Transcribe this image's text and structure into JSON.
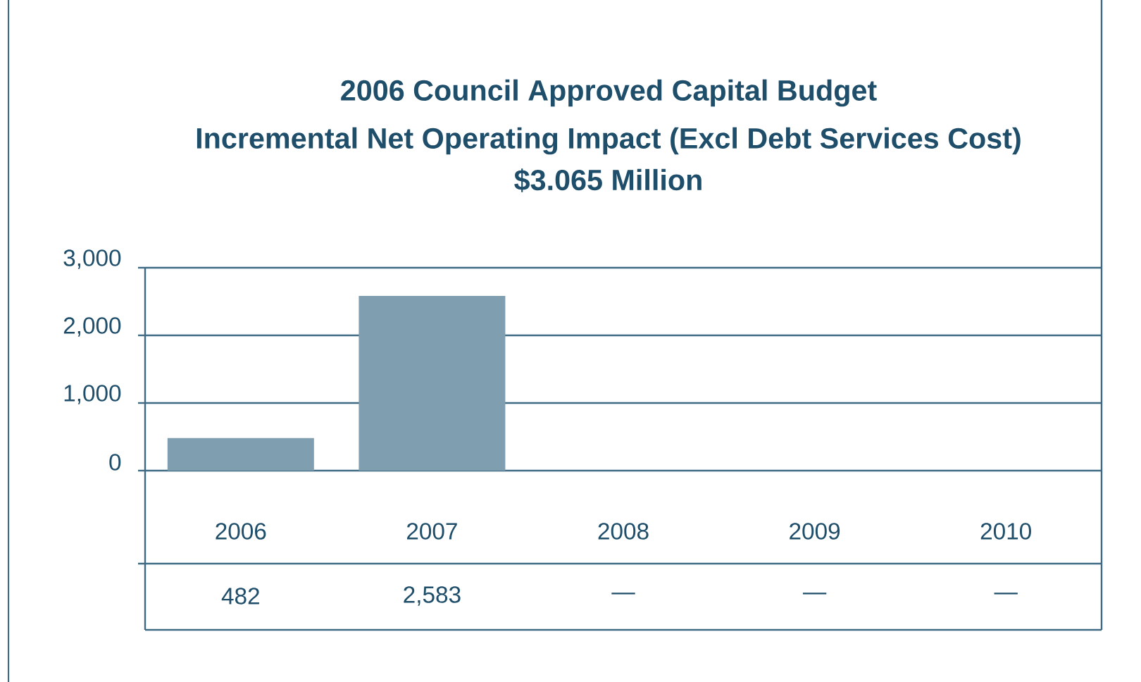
{
  "chart_data": {
    "type": "bar",
    "title": "2006 Council Approved Capital Budget",
    "subtitle": "Incremental Net Operating Impact (Excl Debt Services Cost)",
    "annotations": [
      "$3.065 Million"
    ],
    "categories": [
      "2006",
      "2007",
      "2008",
      "2009",
      "2010"
    ],
    "values": [
      482,
      2583,
      null,
      null,
      null
    ],
    "value_labels": [
      "482",
      "2,583",
      "—",
      "—",
      "—"
    ],
    "color": "#7f9fb0",
    "ylim": [
      0,
      3000
    ],
    "yticks": [
      {
        "value": 0,
        "label": "0"
      },
      {
        "value": 1000,
        "label": "1,000"
      },
      {
        "value": 2000,
        "label": "2,000"
      },
      {
        "value": 3000,
        "label": "3,000"
      }
    ],
    "grid": "y"
  }
}
